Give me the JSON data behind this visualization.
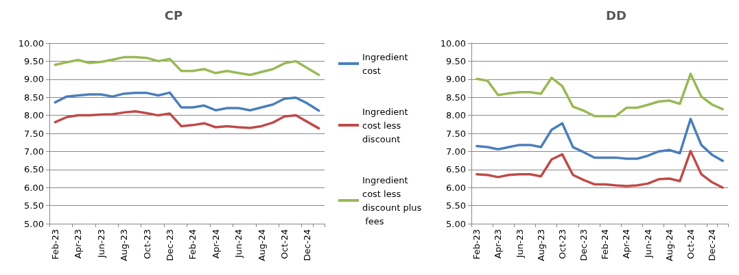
{
  "chart_data": [
    {
      "type": "line",
      "title": "CP",
      "categories": [
        "Feb-23",
        null,
        "Apr-23",
        null,
        "Jun-23",
        null,
        "Aug-23",
        null,
        "Oct-23",
        null,
        "Dec-23",
        null,
        "Feb-24",
        null,
        "Apr-24",
        null,
        "Jun-24",
        null,
        "Aug-24",
        null,
        "Oct-24",
        null,
        "Dec-24",
        null
      ],
      "series": [
        {
          "name": "Ingredient cost",
          "color": "#4a7ebb",
          "values": [
            8.36,
            8.52,
            8.55,
            8.58,
            8.58,
            8.52,
            8.6,
            8.62,
            8.62,
            8.55,
            8.63,
            8.22,
            8.22,
            8.27,
            8.14,
            8.2,
            8.2,
            8.14,
            8.22,
            8.3,
            8.46,
            8.49,
            8.33,
            8.13
          ]
        },
        {
          "name": "Ingredient cost less discount",
          "color": "#be4b48",
          "values": [
            7.81,
            7.95,
            8.0,
            8.0,
            8.02,
            8.03,
            8.08,
            8.11,
            8.06,
            8.0,
            8.05,
            7.7,
            7.73,
            7.78,
            7.67,
            7.7,
            7.67,
            7.65,
            7.7,
            7.8,
            7.97,
            8.0,
            7.82,
            7.64
          ]
        },
        {
          "name": "Ingredient cost less discount plus fees",
          "color": "#98b954",
          "values": [
            9.4,
            9.47,
            9.53,
            9.45,
            9.48,
            9.54,
            9.61,
            9.61,
            9.59,
            9.5,
            9.56,
            9.23,
            9.23,
            9.28,
            9.17,
            9.23,
            9.17,
            9.12,
            9.2,
            9.28,
            9.44,
            9.5,
            9.31,
            9.12
          ]
        }
      ],
      "ylim": [
        5,
        10
      ],
      "yticks": [
        {
          "value": 5,
          "label": "5.00"
        },
        {
          "value": 5.5,
          "label": "5.50"
        },
        {
          "value": 6,
          "label": "6.00"
        },
        {
          "value": 6.5,
          "label": "6.50"
        },
        {
          "value": 7,
          "label": "7.00"
        },
        {
          "value": 7.5,
          "label": "7.50"
        },
        {
          "value": 8,
          "label": "8.00"
        },
        {
          "value": 8.5,
          "label": "8.50"
        },
        {
          "value": 9,
          "label": "9.00"
        },
        {
          "value": 9.5,
          "label": "9.50"
        },
        {
          "value": 10,
          "label": "10.00"
        }
      ],
      "grid": "y",
      "legend": "right",
      "marker": "none",
      "line_style": "solid"
    },
    {
      "type": "line",
      "title": "DD",
      "categories": [
        "Feb-23",
        null,
        "Apr-23",
        null,
        "Jun-23",
        null,
        "Aug-23",
        null,
        "Oct-23",
        null,
        "Dec-23",
        null,
        "Feb-24",
        null,
        "Apr-24",
        null,
        "Jun-24",
        null,
        "Aug-24",
        null,
        "Oct-24",
        null,
        "Dec-24",
        null
      ],
      "series": [
        {
          "color": "#4a7ebb",
          "values": [
            7.15,
            7.12,
            7.06,
            7.12,
            7.18,
            7.18,
            7.12,
            7.6,
            7.78,
            7.12,
            6.98,
            6.83,
            6.83,
            6.83,
            6.8,
            6.8,
            6.88,
            7.0,
            7.04,
            6.95,
            7.9,
            7.18,
            6.91,
            6.74
          ]
        },
        {
          "color": "#be4b48",
          "values": [
            6.37,
            6.35,
            6.29,
            6.35,
            6.37,
            6.37,
            6.31,
            6.78,
            6.92,
            6.35,
            6.21,
            6.09,
            6.09,
            6.06,
            6.04,
            6.06,
            6.11,
            6.23,
            6.25,
            6.18,
            7.01,
            6.37,
            6.15,
            6.0
          ]
        },
        {
          "color": "#98b954",
          "values": [
            9.01,
            8.96,
            8.56,
            8.61,
            8.64,
            8.64,
            8.6,
            9.04,
            8.81,
            8.24,
            8.13,
            7.98,
            7.98,
            7.98,
            8.21,
            8.21,
            8.29,
            8.38,
            8.41,
            8.32,
            9.15,
            8.52,
            8.3,
            8.17
          ]
        }
      ],
      "ylim": [
        5,
        10
      ],
      "yticks": [
        {
          "value": 5,
          "label": "5.00"
        },
        {
          "value": 5.5,
          "label": "5.50"
        },
        {
          "value": 6,
          "label": "6.00"
        },
        {
          "value": 6.5,
          "label": "6.50"
        },
        {
          "value": 7,
          "label": "7.00"
        },
        {
          "value": 7.5,
          "label": "7.50"
        },
        {
          "value": 8,
          "label": "8.00"
        },
        {
          "value": 8.5,
          "label": "8.50"
        },
        {
          "value": 9,
          "label": "9.00"
        },
        {
          "value": 9.5,
          "label": "9.50"
        },
        {
          "value": 10,
          "label": "10.00"
        }
      ],
      "grid": "y",
      "marker": "none",
      "line_style": "solid"
    }
  ]
}
